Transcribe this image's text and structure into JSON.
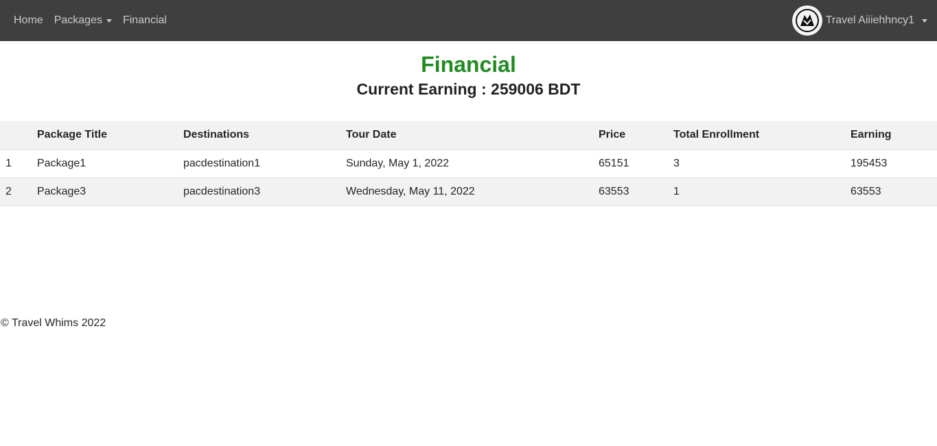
{
  "nav": {
    "home": "Home",
    "packages": "Packages",
    "financial": "Financial",
    "user_name": "Travel Aiiiehhncy1"
  },
  "page": {
    "title": "Financial",
    "earning_label": "Current Earning : 259006 BDT"
  },
  "table": {
    "headers": [
      "",
      "Package Title",
      "Destinations",
      "Tour Date",
      "Price",
      "Total Enrollment",
      "Earning"
    ],
    "rows": [
      [
        "1",
        "Package1",
        "pacdestination1",
        "Sunday, May 1, 2022",
        "65151",
        "3",
        "195453"
      ],
      [
        "2",
        "Package3",
        "pacdestination3",
        "Wednesday, May 11, 2022",
        "63553",
        "1",
        "63553"
      ]
    ]
  },
  "footer": {
    "text": "© Travel Whims 2022"
  },
  "colors": {
    "navbar": "#3f3f3f",
    "title": "#228b22",
    "stripe": "#f2f2f2"
  }
}
